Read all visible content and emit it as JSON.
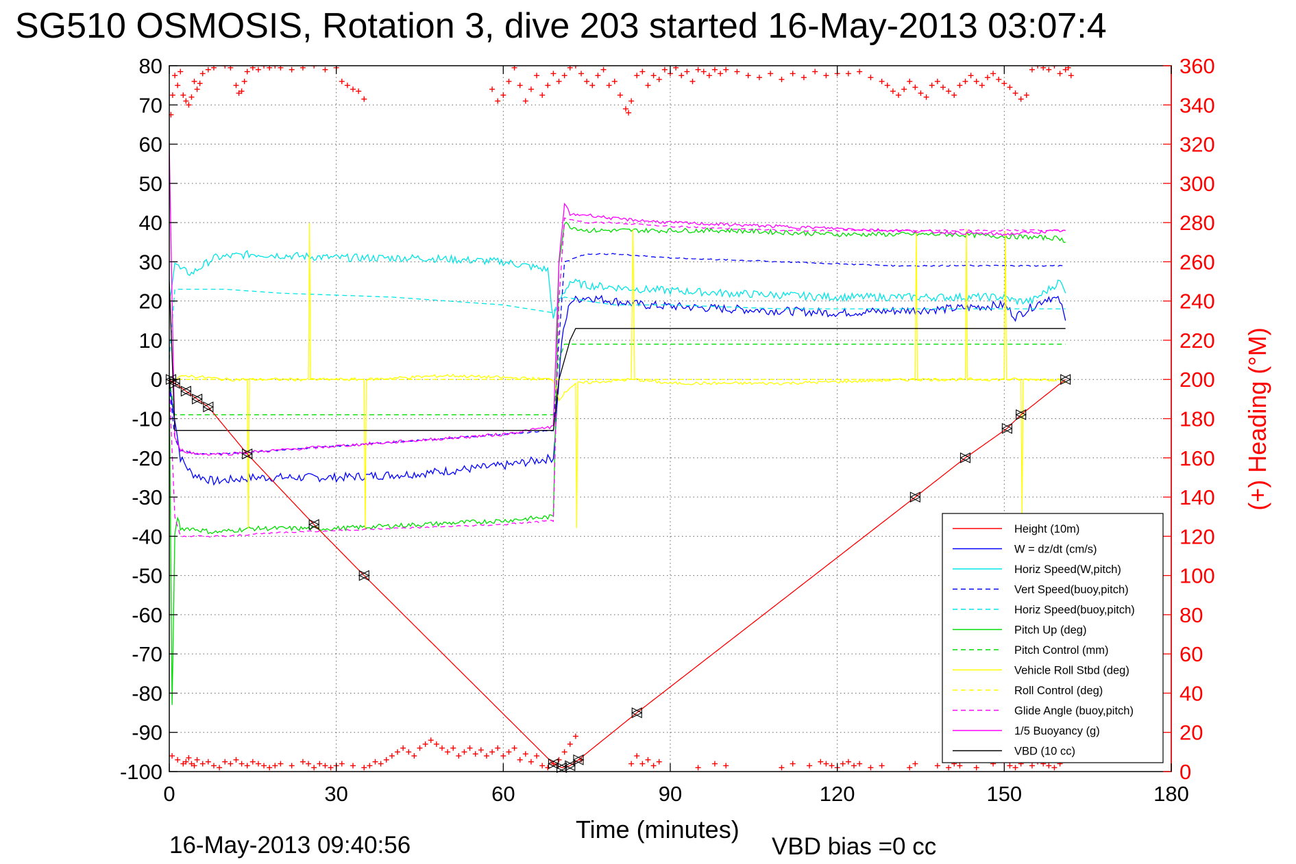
{
  "chart_data": {
    "type": "line",
    "title": "SG510 OSMOSIS, Rotation 3, dive 203 started 16-May-2013 03:07:4",
    "xlabel": "Time (minutes)",
    "ylabel": "",
    "y2label": "(+) Heading (°M)",
    "xlim": [
      0,
      180
    ],
    "ylim": [
      -100,
      80
    ],
    "y2lim": [
      0,
      360
    ],
    "xticks": [
      0,
      30,
      60,
      90,
      120,
      150,
      180
    ],
    "yticks": [
      80,
      70,
      60,
      50,
      40,
      30,
      20,
      10,
      0,
      -10,
      -20,
      -30,
      -40,
      -50,
      -60,
      -70,
      -80,
      -90,
      -100
    ],
    "y2ticks": [
      360,
      340,
      320,
      300,
      280,
      260,
      240,
      220,
      200,
      180,
      160,
      140,
      120,
      100,
      80,
      60,
      40,
      20,
      0
    ],
    "grid": true,
    "legend_position": "lower-right",
    "footer_left": "16-May-2013 09:40:56",
    "footer_right": "VBD bias =0 cc",
    "series": [
      {
        "name": "Height (10m)",
        "color": "#ff0000",
        "style": "solid",
        "x": [
          0,
          1,
          3,
          5,
          7,
          14,
          26,
          35,
          69,
          70.5,
          72,
          73.5,
          84,
          134,
          143,
          150.5,
          153,
          161
        ],
        "y": [
          0,
          -1,
          -3,
          -5,
          -7,
          -19,
          -37,
          -50,
          -98,
          -99,
          -98.5,
          -97,
          -85,
          -30,
          -20,
          -12.5,
          -9,
          0
        ]
      },
      {
        "name": "W = dz/dt (cm/s)",
        "color": "#0000ff",
        "style": "solid",
        "x": [
          0,
          1,
          2,
          4,
          8,
          15,
          30,
          45,
          60,
          69,
          70.5,
          72,
          75,
          85,
          100,
          120,
          140,
          150,
          152,
          158,
          160,
          161
        ],
        "y": [
          -1,
          -10,
          -20,
          -24,
          -26,
          -25,
          -25,
          -24,
          -22,
          -20,
          10,
          20,
          21,
          19,
          18,
          17,
          18,
          19,
          16,
          21,
          20,
          15
        ]
      },
      {
        "name": "Horiz Speed(W,pitch)",
        "color": "#00e5e5",
        "style": "solid",
        "x": [
          0,
          1,
          2,
          4,
          8,
          15,
          30,
          45,
          60,
          68,
          69,
          70,
          72,
          75,
          85,
          100,
          120,
          140,
          150,
          152,
          155,
          160,
          161
        ],
        "y": [
          20,
          30,
          28,
          27,
          31,
          32,
          31,
          31,
          30,
          28,
          15,
          20,
          25,
          24,
          23,
          22,
          21,
          21,
          21,
          20,
          20,
          25,
          22
        ]
      },
      {
        "name": "Vert Speed(buoy,pitch)",
        "color": "#0000ff",
        "style": "dashed",
        "x": [
          0,
          1,
          2,
          5,
          10,
          20,
          40,
          60,
          69,
          70,
          71,
          75,
          80,
          90,
          110,
          130,
          150,
          161
        ],
        "y": [
          -1,
          -15,
          -18,
          -19,
          -19,
          -18,
          -16,
          -14,
          -13,
          10,
          30,
          32,
          32,
          31,
          30,
          29,
          29,
          29
        ]
      },
      {
        "name": "Horiz Speed(buoy,pitch)",
        "color": "#00e5e5",
        "style": "dashed",
        "x": [
          0,
          1,
          2,
          10,
          20,
          40,
          60,
          69,
          70,
          71,
          75,
          80,
          90,
          110,
          130,
          150,
          161
        ],
        "y": [
          5,
          23,
          23,
          23,
          22,
          21,
          19,
          17,
          20,
          21,
          20,
          19,
          19,
          18,
          18,
          18,
          18
        ]
      },
      {
        "name": "Pitch Up (deg)",
        "color": "#00dd00",
        "style": "solid",
        "x": [
          0,
          0.5,
          1,
          1.5,
          2,
          4,
          8,
          15,
          30,
          45,
          60,
          69,
          70,
          71,
          72,
          75,
          85,
          100,
          120,
          140,
          160,
          161
        ],
        "y": [
          0,
          -83,
          -40,
          -35,
          -38,
          -38,
          -39,
          -38,
          -38,
          -37,
          -36,
          -35,
          30,
          40,
          39,
          38,
          38,
          38,
          37,
          37,
          36,
          35
        ]
      },
      {
        "name": "Pitch Control (mm)",
        "color": "#00dd00",
        "style": "dashed",
        "x": [
          0,
          1,
          2,
          10,
          30,
          69,
          70,
          71,
          90,
          120,
          150,
          161
        ],
        "y": [
          0,
          -9,
          -9,
          -9,
          -9,
          -9,
          5,
          9,
          9,
          9,
          9,
          9
        ]
      },
      {
        "name": "Vehicle Roll Stbd (deg)",
        "color": "#ffff00",
        "style": "solid",
        "x": [
          0,
          1,
          3,
          10,
          14,
          14.2,
          14.4,
          25,
          25.2,
          25.4,
          35,
          35.2,
          35.4,
          50,
          69,
          70,
          72,
          73,
          73.2,
          73.4,
          83,
          83.3,
          83.6,
          90,
          110,
          134,
          134.2,
          134.4,
          143,
          143.2,
          143.4,
          150,
          150.2,
          150.4,
          153,
          153.2,
          153.4,
          160,
          161
        ],
        "y": [
          -1,
          0,
          1,
          0,
          0,
          -38,
          0,
          0,
          40,
          0,
          0,
          -38,
          0,
          1,
          0,
          -5,
          -2,
          -1,
          -38,
          -1,
          0,
          38,
          0,
          -1,
          -1,
          0,
          38,
          0,
          0,
          38,
          0,
          0,
          38,
          0,
          0,
          -35,
          0,
          0,
          -1
        ]
      },
      {
        "name": "Roll Control (deg)",
        "color": "#ffff00",
        "style": "dashed",
        "x": [
          0,
          10,
          30,
          60,
          69,
          70,
          90,
          120,
          150,
          161
        ],
        "y": [
          0,
          0,
          0,
          0,
          0,
          0,
          0,
          0,
          0,
          0
        ]
      },
      {
        "name": "Glide Angle (buoy,pitch)",
        "color": "#ff00ff",
        "style": "dashed",
        "x": [
          0,
          1,
          2,
          5,
          10,
          20,
          40,
          60,
          69,
          70,
          71,
          75,
          80,
          90,
          110,
          130,
          150,
          161
        ],
        "y": [
          -1,
          -35,
          -40,
          -40,
          -40,
          -39,
          -38,
          -37,
          -36,
          20,
          41,
          40,
          40,
          39,
          38,
          38,
          38,
          38
        ]
      },
      {
        "name": "1/5 Buoyancy (g)",
        "color": "#ff00ff",
        "style": "solid",
        "x": [
          0,
          0.5,
          1,
          2,
          5,
          10,
          20,
          40,
          60,
          69,
          70,
          71,
          72,
          75,
          80,
          90,
          110,
          130,
          150,
          161
        ],
        "y": [
          60,
          20,
          -15,
          -18,
          -19,
          -19,
          -18,
          -16,
          -14,
          -12,
          30,
          45,
          42,
          42,
          41,
          40,
          39,
          38,
          37,
          38
        ]
      },
      {
        "name": "VBD (10 cc)",
        "color": "#000000",
        "style": "solid",
        "x": [
          0,
          1,
          2,
          10,
          30,
          50,
          69,
          70,
          72,
          73,
          80,
          100,
          130,
          161
        ],
        "y": [
          25,
          -13,
          -13,
          -13,
          -13,
          -13,
          -13,
          0,
          10,
          13,
          13,
          13,
          13,
          13
        ]
      }
    ],
    "heading_series": {
      "name": "(+) Heading (°M)",
      "color": "#ff0000",
      "marker": "+",
      "top_x": [
        0.3,
        0.6,
        1,
        1.5,
        2,
        2.5,
        3,
        3.5,
        4,
        4.5,
        5,
        5.5,
        6,
        7,
        8,
        10,
        11,
        12,
        12.5,
        13,
        13.5,
        14,
        15,
        16,
        17,
        18,
        19,
        20,
        22,
        24,
        26,
        28,
        30,
        31,
        32,
        33,
        34,
        35,
        58,
        59,
        60,
        61,
        62,
        63,
        64,
        65,
        66,
        67,
        68,
        69,
        70,
        71,
        72,
        73,
        74,
        75,
        76,
        77,
        78,
        79,
        80,
        81,
        82,
        82.5,
        83,
        84,
        85,
        86,
        87,
        88,
        89,
        90,
        91,
        92,
        93,
        94,
        95,
        96,
        97,
        98,
        99,
        100,
        102,
        104,
        106,
        108,
        110,
        112,
        114,
        116,
        118,
        120,
        122,
        124,
        126,
        128,
        129,
        130,
        131,
        132,
        133,
        134,
        135,
        136,
        137,
        138,
        139,
        140,
        141,
        142,
        143,
        144,
        145,
        146,
        147,
        148,
        149,
        150,
        151,
        152,
        153,
        154,
        155,
        156,
        157,
        158,
        159,
        160,
        161,
        161.5,
        162
      ],
      "top_y": [
        335,
        345,
        355,
        350,
        357,
        345,
        342,
        340,
        344,
        352,
        348,
        351,
        356,
        358,
        359,
        360,
        359,
        350,
        346,
        347,
        352,
        357,
        359,
        358,
        360,
        359,
        360,
        359,
        358,
        359,
        360,
        358,
        359,
        352,
        350,
        348,
        347,
        343,
        348,
        342,
        345,
        352,
        359,
        350,
        342,
        348,
        355,
        345,
        350,
        356,
        352,
        355,
        359,
        360,
        356,
        352,
        350,
        355,
        358,
        350,
        352,
        345,
        338,
        336,
        342,
        355,
        357,
        350,
        355,
        353,
        358,
        356,
        359,
        355,
        357,
        352,
        358,
        357,
        355,
        358,
        356,
        358,
        357,
        355,
        354,
        356,
        353,
        356,
        354,
        357,
        355,
        356,
        356,
        357,
        354,
        352,
        350,
        347,
        345,
        348,
        352,
        349,
        346,
        344,
        350,
        352,
        349,
        347,
        345,
        350,
        352,
        355,
        352,
        350,
        354,
        356,
        353,
        351,
        349,
        346,
        343,
        345,
        358,
        360,
        359,
        358,
        360,
        356,
        358,
        359,
        355,
        348,
        335,
        338,
        330
      ],
      "bottom_x": [
        0.5,
        1.5,
        2.5,
        3,
        3.5,
        4,
        4.5,
        5,
        6,
        7,
        8,
        9,
        10,
        11,
        12,
        13,
        14,
        15,
        16,
        17,
        18,
        19,
        20,
        22,
        24,
        25,
        26,
        27,
        28,
        29,
        30,
        31,
        33,
        35,
        36,
        37,
        38,
        39,
        40,
        41,
        42,
        43,
        44,
        45,
        46,
        47,
        48,
        49,
        50,
        51,
        52,
        53,
        54,
        55,
        56,
        57,
        58,
        59,
        60,
        61,
        62,
        63,
        64,
        65,
        66,
        67,
        68,
        69,
        70,
        71,
        72,
        73,
        74,
        83,
        84,
        85,
        86,
        87,
        88,
        95,
        98,
        100,
        110,
        112,
        115,
        117,
        118,
        119,
        120,
        121,
        122,
        123,
        124,
        126,
        128,
        133,
        134,
        138,
        140,
        141,
        142,
        145,
        148,
        150,
        151,
        152,
        153,
        154,
        155,
        156,
        157,
        158,
        159,
        160
      ],
      "bottom_y": [
        8,
        6,
        4,
        5,
        7,
        4,
        3,
        6,
        4,
        5,
        3,
        2,
        5,
        4,
        6,
        4,
        3,
        5,
        4,
        3,
        2,
        3,
        4,
        3,
        5,
        4,
        2,
        4,
        3,
        2,
        3,
        4,
        3,
        2,
        3,
        5,
        4,
        6,
        8,
        10,
        12,
        10,
        8,
        12,
        14,
        16,
        14,
        12,
        10,
        12,
        8,
        10,
        12,
        9,
        11,
        8,
        10,
        12,
        8,
        10,
        12,
        6,
        9,
        5,
        8,
        3,
        2,
        4,
        6,
        10,
        14,
        18,
        6,
        4,
        8,
        4,
        6,
        3,
        5,
        2,
        4,
        3,
        2,
        4,
        3,
        5,
        4,
        3,
        2,
        4,
        5,
        3,
        4,
        2,
        3,
        2,
        4,
        3,
        2,
        4,
        3,
        2,
        4,
        5,
        3,
        2,
        4,
        6,
        3,
        5,
        4,
        3,
        2,
        4
      ]
    },
    "height_markers_x": [
      0.3,
      1,
      3,
      5,
      7,
      14,
      26,
      35,
      69,
      70.5,
      72,
      73.5,
      84,
      134,
      143,
      150.5,
      153,
      161
    ],
    "height_markers_y": [
      0,
      -1,
      -3,
      -5,
      -7,
      -19,
      -37,
      -50,
      -98,
      -99,
      -98.5,
      -97,
      -85,
      -30,
      -20,
      -12.5,
      -9,
      0
    ]
  }
}
